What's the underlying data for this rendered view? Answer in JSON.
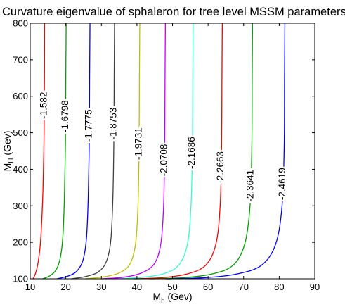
{
  "chart_data": {
    "type": "contour",
    "title": "Curvature eigenvalue of sphaleron for tree level MSSM parameters",
    "xlabel": {
      "main": "M",
      "sub": "h",
      "unit": " (Gev)"
    },
    "ylabel": {
      "main": "M",
      "sub": "H",
      "unit": " (Gev)"
    },
    "xlim": [
      10,
      90
    ],
    "ylim": [
      100,
      800
    ],
    "xticks": [
      10,
      20,
      30,
      40,
      50,
      60,
      70,
      80,
      90
    ],
    "yticks": [
      100,
      200,
      300,
      400,
      500,
      600,
      700,
      800
    ],
    "grid": false,
    "series": [
      {
        "name": "-1.582",
        "label": "-1.582",
        "color": "#ff0000",
        "label_y": 575,
        "points": [
          [
            10.8,
            100
          ],
          [
            11.3,
            110
          ],
          [
            11.8,
            125
          ],
          [
            12.3,
            150
          ],
          [
            12.8,
            190
          ],
          [
            13.2,
            250
          ],
          [
            13.6,
            350
          ],
          [
            13.9,
            500
          ],
          [
            14.0,
            650
          ],
          [
            14.05,
            800
          ]
        ]
      },
      {
        "name": "-1.6798",
        "label": "-1.6798",
        "color": "#00a000",
        "label_y": 545,
        "points": [
          [
            13.5,
            100
          ],
          [
            15.5,
            108
          ],
          [
            17.3,
            125
          ],
          [
            18.5,
            160
          ],
          [
            19.2,
            220
          ],
          [
            19.6,
            320
          ],
          [
            19.9,
            480
          ],
          [
            20.0,
            650
          ],
          [
            20.1,
            800
          ]
        ]
      },
      {
        "name": "-1.7775",
        "label": "-1.7775",
        "color": "#0000ff",
        "label_y": 520,
        "points": [
          [
            17.5,
            100
          ],
          [
            20.5,
            107
          ],
          [
            23.0,
            120
          ],
          [
            24.8,
            150
          ],
          [
            25.8,
            210
          ],
          [
            26.3,
            320
          ],
          [
            26.6,
            480
          ],
          [
            26.7,
            650
          ],
          [
            26.8,
            800
          ]
        ]
      },
      {
        "name": "-1.8753",
        "label": "-1.8753",
        "color": "#404040",
        "label_y": 525,
        "points": [
          [
            21.5,
            100
          ],
          [
            25.5,
            106
          ],
          [
            29.0,
            118
          ],
          [
            31.3,
            145
          ],
          [
            32.6,
            200
          ],
          [
            33.2,
            310
          ],
          [
            33.5,
            470
          ],
          [
            33.6,
            650
          ],
          [
            33.7,
            800
          ]
        ]
      },
      {
        "name": "-1.9731",
        "label": "-1.9731",
        "color": "#bfbf00",
        "label_y": 470,
        "points": [
          [
            25.5,
            100
          ],
          [
            30.5,
            105
          ],
          [
            35.0,
            116
          ],
          [
            38.0,
            140
          ],
          [
            39.6,
            195
          ],
          [
            40.3,
            300
          ],
          [
            40.6,
            460
          ],
          [
            40.7,
            650
          ],
          [
            40.8,
            800
          ]
        ]
      },
      {
        "name": "-2.0708",
        "label": "-2.0708",
        "color": "#bf00ff",
        "label_y": 425,
        "points": [
          [
            30.0,
            100
          ],
          [
            36.0,
            104
          ],
          [
            41.0,
            115
          ],
          [
            44.8,
            140
          ],
          [
            46.7,
            195
          ],
          [
            47.5,
            300
          ],
          [
            47.8,
            460
          ],
          [
            47.9,
            650
          ],
          [
            48.0,
            800
          ]
        ]
      },
      {
        "name": "-2.1686",
        "label": "-2.1686",
        "color": "#33ffcc",
        "label_y": 445,
        "points": [
          [
            34.5,
            100
          ],
          [
            41.5,
            104
          ],
          [
            47.5,
            114
          ],
          [
            51.8,
            138
          ],
          [
            54.2,
            195
          ],
          [
            55.2,
            300
          ],
          [
            55.6,
            460
          ],
          [
            55.7,
            650
          ],
          [
            55.8,
            800
          ]
        ]
      },
      {
        "name": "-2.2663",
        "label": "-2.2663",
        "color": "#ff0000",
        "label_y": 405,
        "points": [
          [
            39.0,
            100
          ],
          [
            47.0,
            103
          ],
          [
            54.0,
            113
          ],
          [
            59.3,
            137
          ],
          [
            62.2,
            195
          ],
          [
            63.4,
            300
          ],
          [
            63.8,
            460
          ],
          [
            63.9,
            650
          ],
          [
            64.0,
            800
          ]
        ]
      },
      {
        "name": "-2.3641",
        "label": "-2.3641",
        "color": "#00a000",
        "label_y": 355,
        "points": [
          [
            43.5,
            100
          ],
          [
            53.0,
            103
          ],
          [
            61.0,
            113
          ],
          [
            67.0,
            137
          ],
          [
            70.3,
            195
          ],
          [
            71.8,
            300
          ],
          [
            72.3,
            460
          ],
          [
            72.4,
            650
          ],
          [
            72.5,
            800
          ]
        ]
      },
      {
        "name": "-2.4619",
        "label": "-2.4619",
        "color": "#0000ff",
        "label_y": 360,
        "points": [
          [
            48.0,
            100
          ],
          [
            59.0,
            103
          ],
          [
            68.0,
            113
          ],
          [
            75.0,
            137
          ],
          [
            79.0,
            195
          ],
          [
            80.8,
            300
          ],
          [
            81.4,
            460
          ],
          [
            81.5,
            650
          ],
          [
            81.6,
            800
          ]
        ]
      }
    ]
  }
}
